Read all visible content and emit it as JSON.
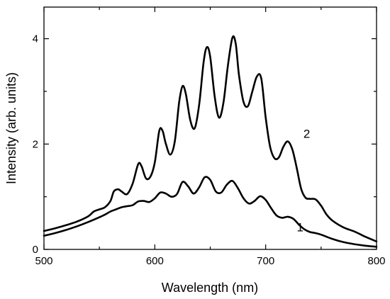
{
  "chart_data": {
    "type": "line",
    "xlabel": "Wavelength (nm)",
    "ylabel": "Intensity (arb. units)",
    "xlim": [
      500,
      800
    ],
    "ylim": [
      0,
      4.6
    ],
    "x_major_ticks": [
      500,
      600,
      700,
      800
    ],
    "x_minor_ticks": [
      550,
      650,
      750
    ],
    "y_major_ticks": [
      0,
      2,
      4
    ],
    "y_minor_ticks": [
      1,
      3
    ],
    "x_tick_labels": [
      "500",
      "600",
      "700",
      "800"
    ],
    "y_tick_labels": [
      "0",
      "2",
      "4"
    ],
    "grid": false,
    "series": [
      {
        "name": "1",
        "x": [
          500,
          510,
          520,
          530,
          540,
          550,
          555,
          560,
          565,
          570,
          575,
          580,
          585,
          590,
          595,
          600,
          605,
          610,
          615,
          620,
          625,
          630,
          635,
          640,
          645,
          650,
          655,
          660,
          665,
          670,
          675,
          680,
          685,
          690,
          695,
          700,
          705,
          710,
          715,
          720,
          725,
          730,
          735,
          740,
          745,
          750,
          760,
          770,
          780,
          790,
          800
        ],
        "y": [
          0.26,
          0.31,
          0.37,
          0.44,
          0.52,
          0.61,
          0.66,
          0.72,
          0.76,
          0.8,
          0.82,
          0.84,
          0.91,
          0.92,
          0.9,
          0.97,
          1.08,
          1.06,
          1.0,
          1.05,
          1.28,
          1.2,
          1.06,
          1.18,
          1.37,
          1.32,
          1.1,
          1.08,
          1.23,
          1.3,
          1.16,
          0.97,
          0.87,
          0.92,
          1.01,
          0.94,
          0.78,
          0.64,
          0.6,
          0.62,
          0.58,
          0.47,
          0.38,
          0.33,
          0.31,
          0.28,
          0.2,
          0.14,
          0.1,
          0.07,
          0.05
        ]
      },
      {
        "name": "2",
        "x": [
          500,
          510,
          520,
          530,
          540,
          545,
          550,
          555,
          560,
          563,
          567,
          570,
          575,
          580,
          585,
          588,
          592,
          596,
          600,
          604,
          607,
          610,
          614,
          618,
          622,
          625,
          628,
          632,
          636,
          640,
          644,
          647,
          650,
          654,
          658,
          662,
          666,
          670,
          673,
          676,
          680,
          684,
          688,
          692,
          696,
          700,
          704,
          708,
          712,
          716,
          720,
          724,
          728,
          732,
          736,
          740,
          745,
          750,
          755,
          760,
          770,
          780,
          790,
          800
        ],
        "y": [
          0.35,
          0.4,
          0.46,
          0.53,
          0.63,
          0.72,
          0.76,
          0.8,
          0.92,
          1.1,
          1.14,
          1.1,
          1.05,
          1.25,
          1.62,
          1.58,
          1.35,
          1.38,
          1.65,
          2.25,
          2.25,
          2.0,
          1.8,
          2.05,
          2.8,
          3.1,
          2.95,
          2.45,
          2.3,
          2.75,
          3.55,
          3.84,
          3.65,
          2.9,
          2.5,
          2.8,
          3.5,
          4.02,
          3.9,
          3.3,
          2.8,
          2.72,
          3.0,
          3.28,
          3.25,
          2.5,
          1.95,
          1.73,
          1.75,
          1.95,
          2.05,
          1.9,
          1.55,
          1.15,
          0.98,
          0.96,
          0.95,
          0.83,
          0.66,
          0.55,
          0.42,
          0.34,
          0.24,
          0.15
        ]
      }
    ],
    "curve_labels": [
      {
        "text": "1",
        "x": 728,
        "y": 0.34
      },
      {
        "text": "2",
        "x": 734,
        "y": 2.12
      }
    ]
  }
}
